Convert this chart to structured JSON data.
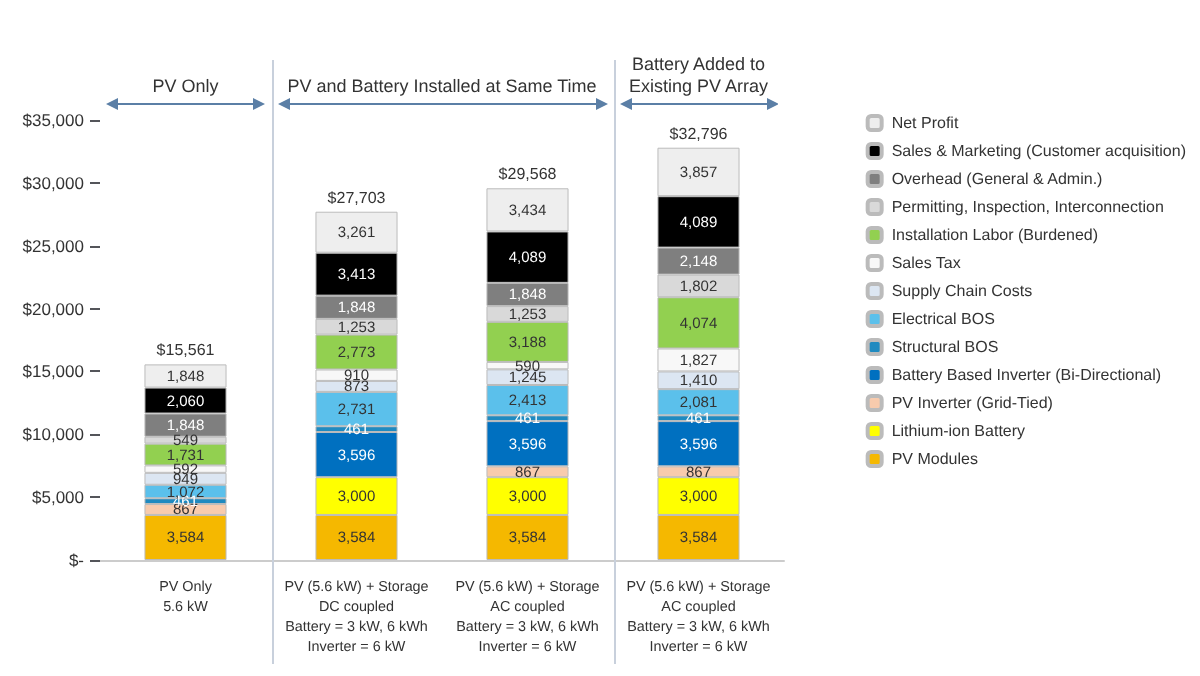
{
  "chart_data": {
    "type": "bar",
    "stacked": true,
    "categories": [
      "PV Only\n5.6 kW",
      "PV (5.6 kW) + Storage\nDC coupled\nBattery = 3 kW, 6 kWh\nInverter = 6 kW",
      "PV (5.6 kW) + Storage\nAC coupled\nBattery = 3 kW, 6 kWh\nInverter = 6 kW",
      "PV (5.6 kW) + Storage\nAC coupled\nBattery = 3 kW, 6 kWh\nInverter = 6 kW"
    ],
    "series": [
      {
        "name": "PV Modules",
        "color": "#f5b800",
        "values": [
          3584,
          3584,
          3584,
          3584
        ],
        "value_labels": [
          "3,584",
          "3,584",
          "3,584",
          "3,584"
        ]
      },
      {
        "name": "Lithium-ion Battery",
        "color": "#ffff00",
        "values": [
          null,
          3000,
          3000,
          3000
        ],
        "value_labels": [
          null,
          "3,000",
          "3,000",
          "3,000"
        ]
      },
      {
        "name": "PV Inverter (Grid-Tied)",
        "color": "#f8cbad",
        "values": [
          867,
          null,
          867,
          867
        ],
        "value_labels": [
          "867",
          null,
          "867",
          "867"
        ]
      },
      {
        "name": "Battery Based Inverter (Bi-Directional)",
        "color": "#0070c0",
        "values": [
          null,
          3596,
          3596,
          3596
        ],
        "value_labels": [
          null,
          "3,596",
          "3,596",
          "3,596"
        ]
      },
      {
        "name": "Structural BOS",
        "color": "#1f8ac0",
        "values": [
          461,
          461,
          461,
          461
        ],
        "value_labels": [
          "461",
          "461",
          "461",
          "461"
        ]
      },
      {
        "name": "Electrical BOS",
        "color": "#5bc0eb",
        "values": [
          1072,
          2731,
          2413,
          2081
        ],
        "value_labels": [
          "1,072",
          "2,731",
          "2,413",
          "2,081"
        ]
      },
      {
        "name": "Supply Chain Costs",
        "color": "#dce6f2",
        "values": [
          949,
          873,
          1245,
          1410
        ],
        "value_labels": [
          "949",
          "873",
          "1,245",
          "1,410"
        ]
      },
      {
        "name": "Sales Tax",
        "color": "#f8f8f8",
        "values": [
          592,
          910,
          590,
          1827
        ],
        "value_labels": [
          "592",
          "910",
          "590",
          "1,827"
        ]
      },
      {
        "name": "Installation Labor (Burdened)",
        "color": "#92d050",
        "values": [
          1731,
          2773,
          3188,
          4074
        ],
        "value_labels": [
          "1,731",
          "2,773",
          "3,188",
          "4,074"
        ]
      },
      {
        "name": "Permitting, Inspection, Interconnection",
        "color": "#d9d9d9",
        "values": [
          549,
          1253,
          1253,
          1802
        ],
        "value_labels": [
          "549",
          "1,253",
          "1,253",
          "1,802"
        ]
      },
      {
        "name": "Overhead (General & Admin.)",
        "color": "#7f7f7f",
        "values": [
          1848,
          1848,
          1848,
          2148
        ],
        "value_labels": [
          "1,848",
          "1,848",
          "1,848",
          "2,148"
        ]
      },
      {
        "name": "Sales & Marketing (Customer acquisition)",
        "color": "#000000",
        "values": [
          2060,
          3413,
          4089,
          4089
        ],
        "value_labels": [
          "2,060",
          "3,413",
          "4,089",
          "4,089"
        ]
      },
      {
        "name": "Net Profit",
        "color": "#eeeeee",
        "values": [
          1848,
          3261,
          3434,
          3857
        ],
        "value_labels": [
          "1,848",
          "3,261",
          "3,434",
          "3,857"
        ]
      }
    ],
    "totals": [
      "$15,561",
      "$27,703",
      "$29,568",
      "$32,796"
    ],
    "ylim": [
      0,
      35000
    ],
    "yticks": [
      {
        "value": 0,
        "label": "$-"
      },
      {
        "value": 5000,
        "label": "$5,000"
      },
      {
        "value": 10000,
        "label": "$10,000"
      },
      {
        "value": 15000,
        "label": "$15,000"
      },
      {
        "value": 20000,
        "label": "$20,000"
      },
      {
        "value": 25000,
        "label": "$25,000"
      },
      {
        "value": 30000,
        "label": "$30,000"
      },
      {
        "value": 35000,
        "label": "$35,000"
      }
    ],
    "annotations": [
      "PV Only",
      "PV and Battery Installed at Same Time",
      "Battery Added to\nExisting PV Array"
    ],
    "grid": false,
    "legend": "right"
  }
}
